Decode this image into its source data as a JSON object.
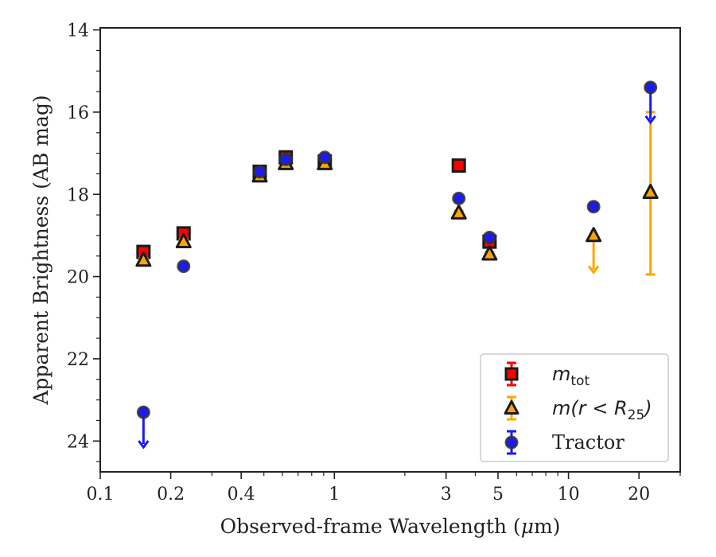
{
  "chart_data": {
    "type": "scatter",
    "xlabel_prefix": "Observed-frame Wavelength (",
    "xlabel_unit_mu": "μ",
    "xlabel_suffix": "m)",
    "ylabel": "Apparent Brightness (AB mag)",
    "x_scale": "log",
    "xlim": [
      0.1,
      30
    ],
    "ylim": [
      24.75,
      13.95
    ],
    "y_inverted": true,
    "x_ticks": [
      {
        "value": 0.1,
        "label": "0.1"
      },
      {
        "value": 0.2,
        "label": "0.2"
      },
      {
        "value": 0.4,
        "label": "0.4"
      },
      {
        "value": 1,
        "label": "1"
      },
      {
        "value": 3,
        "label": "3"
      },
      {
        "value": 5,
        "label": "5"
      },
      {
        "value": 10,
        "label": "10"
      },
      {
        "value": 20,
        "label": "20"
      }
    ],
    "y_ticks": [
      {
        "value": 14,
        "label": "14"
      },
      {
        "value": 16,
        "label": "16"
      },
      {
        "value": 18,
        "label": "18"
      },
      {
        "value": 20,
        "label": "20"
      },
      {
        "value": 22,
        "label": "22"
      },
      {
        "value": 24,
        "label": "24"
      }
    ],
    "grid": false,
    "legend_position": "bottom-right",
    "series": [
      {
        "name_math": "m",
        "name_sub": "tot",
        "marker": "square",
        "color": "#ff0000",
        "edge_color": "#1a1a1a",
        "points": [
          {
            "x": 0.153,
            "y": 19.4,
            "yerr": 0.08
          },
          {
            "x": 0.227,
            "y": 18.95,
            "yerr": 0.08
          },
          {
            "x": 0.48,
            "y": 17.45,
            "yerr": 0.05
          },
          {
            "x": 0.62,
            "y": 17.1,
            "yerr": 0.05
          },
          {
            "x": 0.91,
            "y": 17.2,
            "yerr": 0.05
          },
          {
            "x": 3.4,
            "y": 17.3,
            "yerr": 0.05
          },
          {
            "x": 4.6,
            "y": 19.15,
            "yerr": 0.12
          }
        ]
      },
      {
        "name_math": "m(r < R",
        "name_sub": "25",
        "name_tail": ")",
        "marker": "triangle",
        "color": "#ffa500",
        "edge_color": "#1a1a1a",
        "points": [
          {
            "x": 0.153,
            "y": 19.6,
            "yerr": 0.05
          },
          {
            "x": 0.227,
            "y": 19.15,
            "yerr": 0.05
          },
          {
            "x": 0.48,
            "y": 17.55,
            "yerr": 0.05
          },
          {
            "x": 0.62,
            "y": 17.25,
            "yerr": 0.05
          },
          {
            "x": 0.91,
            "y": 17.25,
            "yerr": 0.05
          },
          {
            "x": 3.4,
            "y": 18.45,
            "yerr": 0.05
          },
          {
            "x": 4.6,
            "y": 19.45,
            "yerr": 0.05
          },
          {
            "x": 12.8,
            "y": 19.0,
            "upper_limit_to": 19.9
          },
          {
            "x": 22.4,
            "y": 17.95,
            "yerr_low": 2.0,
            "yerr_high": 1.95
          }
        ]
      },
      {
        "name": "Tractor",
        "marker": "circle",
        "color": "#1a1aff",
        "edge_color": "#333333",
        "points": [
          {
            "x": 0.153,
            "y": 23.3,
            "upper_limit_to": 24.15
          },
          {
            "x": 0.227,
            "y": 19.75,
            "yerr": 0.05
          },
          {
            "x": 0.48,
            "y": 17.45,
            "yerr": 0.05
          },
          {
            "x": 0.62,
            "y": 17.15,
            "yerr": 0.05
          },
          {
            "x": 0.91,
            "y": 17.1,
            "yerr": 0.05
          },
          {
            "x": 3.4,
            "y": 18.1,
            "yerr": 0.05
          },
          {
            "x": 4.6,
            "y": 19.05,
            "yerr": 0.05
          },
          {
            "x": 12.8,
            "y": 18.3,
            "yerr": 0.08
          },
          {
            "x": 22.4,
            "y": 15.4,
            "upper_limit_to": 16.25
          }
        ]
      }
    ]
  }
}
